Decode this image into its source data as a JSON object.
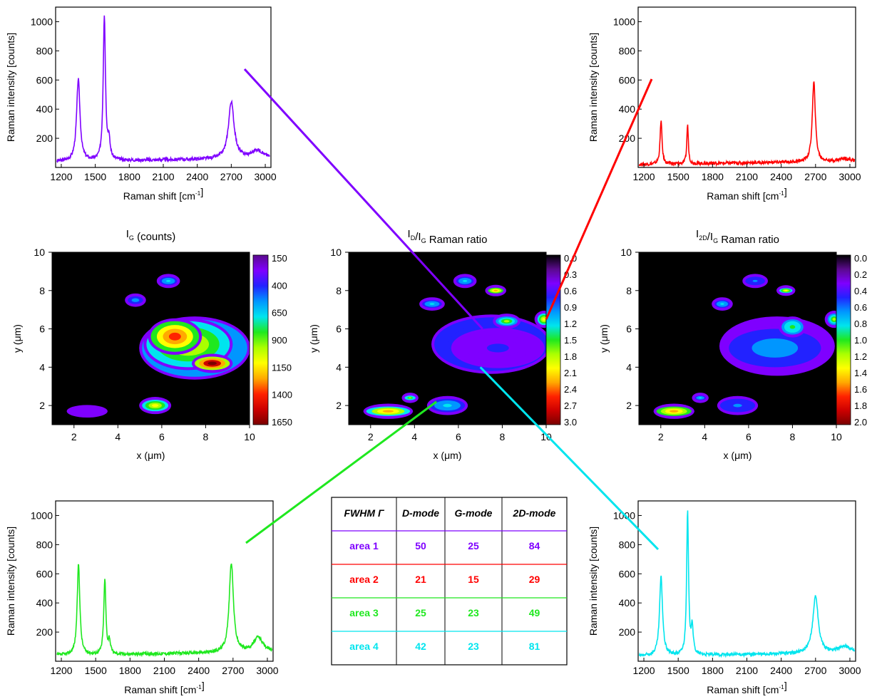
{
  "colors": {
    "area1": "#7f00ff",
    "area2": "#ff0000",
    "area3": "#1fe81f",
    "area4": "#00e5ee",
    "map_background": "#000000"
  },
  "chart_data": [
    {
      "id": "spectrum-area1",
      "type": "line",
      "xlabel": "Raman shift [cm$^{-1}$]",
      "ylabel": "Raman intensity [counts]",
      "xlim": [
        1150,
        3050
      ],
      "ylim": [
        0,
        1100
      ],
      "xticks": [
        1200,
        1500,
        1800,
        2100,
        2400,
        2700,
        3000
      ],
      "yticks": [
        200,
        400,
        600,
        800,
        1000
      ],
      "color": "#7f00ff",
      "baseline": 40,
      "peaks": [
        [
          1350,
          560,
          18
        ],
        [
          1580,
          990,
          12
        ],
        [
          1620,
          120,
          12
        ],
        [
          2700,
          390,
          30
        ],
        [
          2930,
          55,
          60
        ]
      ],
      "x": [
        1160,
        1300,
        1350,
        1420,
        1580,
        1700,
        2100,
        2500,
        2700,
        2850,
        2930,
        3040
      ],
      "y": [
        20,
        120,
        600,
        80,
        1040,
        40,
        45,
        70,
        440,
        70,
        100,
        60
      ]
    },
    {
      "id": "spectrum-area2",
      "type": "line",
      "xlabel": "Raman shift [cm$^{-1}$]",
      "ylabel": "Raman intensity [counts]",
      "xlim": [
        1150,
        3050
      ],
      "ylim": [
        0,
        1100
      ],
      "xticks": [
        1200,
        1500,
        1800,
        2100,
        2400,
        2700,
        3000
      ],
      "yticks": [
        200,
        400,
        600,
        800,
        1000
      ],
      "color": "#ff0000",
      "baseline": 20,
      "peaks": [
        [
          1350,
          300,
          10
        ],
        [
          1582,
          270,
          8
        ],
        [
          2685,
          545,
          16
        ],
        [
          2950,
          20,
          50
        ]
      ],
      "x": [
        1160,
        1350,
        1582,
        2100,
        2685,
        3040
      ],
      "y": [
        20,
        320,
        290,
        30,
        565,
        25
      ]
    },
    {
      "id": "spectrum-area3",
      "type": "line",
      "xlabel": "Raman shift [cm$^{-1}$]",
      "ylabel": "Raman intensity [counts]",
      "xlim": [
        1150,
        3050
      ],
      "ylim": [
        0,
        1100
      ],
      "xticks": [
        1200,
        1500,
        1800,
        2100,
        2400,
        2700,
        3000
      ],
      "yticks": [
        200,
        400,
        600,
        800,
        1000
      ],
      "color": "#1fe81f",
      "baseline": 40,
      "peaks": [
        [
          1350,
          625,
          14
        ],
        [
          1580,
          515,
          11
        ],
        [
          1620,
          90,
          10
        ],
        [
          2685,
          615,
          22
        ],
        [
          2920,
          100,
          50
        ]
      ],
      "x": [
        1160,
        1350,
        1580,
        2100,
        2685,
        2920,
        3040
      ],
      "y": [
        20,
        670,
        560,
        50,
        660,
        150,
        70
      ]
    },
    {
      "id": "spectrum-area4",
      "type": "line",
      "xlabel": "Raman shift [cm$^{-1}$]",
      "ylabel": "Raman intensity [counts]",
      "xlim": [
        1150,
        3050
      ],
      "ylim": [
        0,
        1100
      ],
      "xticks": [
        1200,
        1500,
        1800,
        2100,
        2400,
        2700,
        3000
      ],
      "yticks": [
        200,
        400,
        600,
        800,
        1000
      ],
      "color": "#00e5ee",
      "baseline": 35,
      "peaks": [
        [
          1350,
          540,
          16
        ],
        [
          1582,
          980,
          10
        ],
        [
          1622,
          190,
          10
        ],
        [
          2700,
          395,
          28
        ],
        [
          2950,
          45,
          60
        ]
      ],
      "x": [
        1160,
        1350,
        1582,
        2100,
        2700,
        3040
      ],
      "y": [
        20,
        580,
        1020,
        50,
        430,
        60
      ]
    },
    {
      "id": "map-ig",
      "type": "heatmap",
      "title": "I$_G$ (counts)",
      "xlabel": "x (μm)",
      "ylabel": "y (μm)",
      "xlim": [
        1,
        10
      ],
      "ylim": [
        1,
        10
      ],
      "xticks": [
        2,
        4,
        6,
        8,
        10
      ],
      "yticks": [
        2,
        4,
        6,
        8,
        10
      ],
      "colorbar_ticks": [
        "150",
        "400",
        "650",
        "900",
        "1150",
        "1400",
        "1650"
      ],
      "colorbar_range": [
        150,
        1650
      ],
      "colorbar_reversed": false,
      "regions": [
        {
          "x": 7.5,
          "y": 5.0,
          "rx": 2.4,
          "ry": 1.5,
          "level": 0.35
        },
        {
          "x": 7.2,
          "y": 5.2,
          "rx": 1.9,
          "ry": 1.2,
          "level": 0.55
        },
        {
          "x": 6.6,
          "y": 5.6,
          "rx": 1.1,
          "ry": 0.8,
          "level": 0.8
        },
        {
          "x": 8.3,
          "y": 4.2,
          "rx": 0.8,
          "ry": 0.35,
          "level": 0.97
        },
        {
          "x": 6.3,
          "y": 8.5,
          "rx": 0.4,
          "ry": 0.22,
          "level": 0.3
        },
        {
          "x": 4.8,
          "y": 7.5,
          "rx": 0.35,
          "ry": 0.2,
          "level": 0.25
        },
        {
          "x": 5.7,
          "y": 2.0,
          "rx": 0.6,
          "ry": 0.3,
          "level": 0.55
        },
        {
          "x": 2.6,
          "y": 1.7,
          "rx": 0.8,
          "ry": 0.18,
          "level": 0.05
        }
      ]
    },
    {
      "id": "map-id-ig",
      "type": "heatmap",
      "title": "I$_D$/I$_G$ Raman ratio",
      "xlabel": "x (μm)",
      "ylabel": "y (μm)",
      "xlim": [
        1,
        10
      ],
      "ylim": [
        1,
        10
      ],
      "xticks": [
        2,
        4,
        6,
        8,
        10
      ],
      "yticks": [
        2,
        4,
        6,
        8,
        10
      ],
      "colorbar_ticks": [
        "0.0",
        "0.3",
        "0.6",
        "0.9",
        "1.2",
        "1.5",
        "1.8",
        "2.1",
        "2.4",
        "2.7",
        "3.0"
      ],
      "colorbar_range": [
        0,
        3
      ],
      "colorbar_reversed": true,
      "regions": [
        {
          "x": 7.5,
          "y": 5.2,
          "rx": 2.6,
          "ry": 1.4,
          "level": 0.2
        },
        {
          "x": 7.8,
          "y": 5.0,
          "rx": 2.0,
          "ry": 0.9,
          "level": 0.1
        },
        {
          "x": 8.2,
          "y": 6.4,
          "rx": 0.5,
          "ry": 0.25,
          "level": 0.45
        },
        {
          "x": 6.3,
          "y": 8.5,
          "rx": 0.4,
          "ry": 0.22,
          "level": 0.3
        },
        {
          "x": 7.7,
          "y": 8.0,
          "rx": 0.35,
          "ry": 0.15,
          "level": 0.7
        },
        {
          "x": 4.8,
          "y": 7.3,
          "rx": 0.45,
          "ry": 0.2,
          "level": 0.3
        },
        {
          "x": 2.8,
          "y": 1.7,
          "rx": 1.0,
          "ry": 0.25,
          "level": 0.65
        },
        {
          "x": 5.5,
          "y": 2.0,
          "rx": 0.8,
          "ry": 0.35,
          "level": 0.3
        },
        {
          "x": 3.8,
          "y": 2.4,
          "rx": 0.25,
          "ry": 0.12,
          "level": 0.5
        },
        {
          "x": 9.9,
          "y": 6.5,
          "rx": 0.3,
          "ry": 0.3,
          "level": 0.6
        }
      ]
    },
    {
      "id": "map-i2d-ig",
      "type": "heatmap",
      "title": "I$_{2D}$/I$_G$ Raman ratio",
      "xlabel": "x (μm)",
      "ylabel": "y (μm)",
      "xlim": [
        1,
        10
      ],
      "ylim": [
        1,
        10
      ],
      "xticks": [
        2,
        4,
        6,
        8,
        10
      ],
      "yticks": [
        2,
        4,
        6,
        8,
        10
      ],
      "colorbar_ticks": [
        "0.0",
        "0.2",
        "0.4",
        "0.6",
        "0.8",
        "1.0",
        "1.2",
        "1.4",
        "1.6",
        "1.8",
        "2.0"
      ],
      "colorbar_range": [
        0,
        2
      ],
      "colorbar_reversed": true,
      "regions": [
        {
          "x": 7.3,
          "y": 5.1,
          "rx": 2.5,
          "ry": 1.4,
          "level": 0.15
        },
        {
          "x": 7.2,
          "y": 5.0,
          "rx": 2.1,
          "ry": 1.0,
          "level": 0.22
        },
        {
          "x": 8.0,
          "y": 6.1,
          "rx": 0.5,
          "ry": 0.4,
          "level": 0.4
        },
        {
          "x": 6.3,
          "y": 8.5,
          "rx": 0.45,
          "ry": 0.22,
          "level": 0.2
        },
        {
          "x": 7.7,
          "y": 8.0,
          "rx": 0.3,
          "ry": 0.13,
          "level": 0.55
        },
        {
          "x": 4.8,
          "y": 7.3,
          "rx": 0.35,
          "ry": 0.2,
          "level": 0.3
        },
        {
          "x": 2.6,
          "y": 1.7,
          "rx": 0.8,
          "ry": 0.25,
          "level": 0.7
        },
        {
          "x": 5.5,
          "y": 2.0,
          "rx": 0.8,
          "ry": 0.35,
          "level": 0.2
        },
        {
          "x": 3.8,
          "y": 2.4,
          "rx": 0.25,
          "ry": 0.12,
          "level": 0.3
        },
        {
          "x": 9.9,
          "y": 6.5,
          "rx": 0.3,
          "ry": 0.3,
          "level": 0.45
        }
      ]
    },
    {
      "id": "fwhm-table",
      "type": "table",
      "headers": [
        "FWHM Γ",
        "D-mode",
        "G-mode",
        "2D-mode"
      ],
      "rows": [
        {
          "label": "area 1",
          "values": [
            "50",
            "25",
            "84"
          ],
          "color": "#7f00ff"
        },
        {
          "label": "area 2",
          "values": [
            "21",
            "15",
            "29"
          ],
          "color": "#ff0000"
        },
        {
          "label": "area 3",
          "values": [
            "25",
            "23",
            "49"
          ],
          "color": "#1fe81f"
        },
        {
          "label": "area 4",
          "values": [
            "42",
            "23",
            "81"
          ],
          "color": "#00e5ee"
        }
      ]
    }
  ],
  "connectors": [
    {
      "from": "spectrum-area1",
      "to_xy_um": [
        7.1,
        6.0
      ],
      "on": "map-id-ig",
      "color": "#7f00ff"
    },
    {
      "from": "spectrum-area2",
      "to_xy_um": [
        10.0,
        6.5
      ],
      "on": "map-id-ig",
      "color": "#ff0000"
    },
    {
      "from": "spectrum-area3",
      "to_xy_um": [
        5.0,
        2.2
      ],
      "on": "map-id-ig",
      "color": "#1fe81f"
    },
    {
      "from": "spectrum-area4",
      "to_xy_um": [
        7.0,
        4.0
      ],
      "on": "map-id-ig",
      "color": "#00e5ee"
    }
  ]
}
